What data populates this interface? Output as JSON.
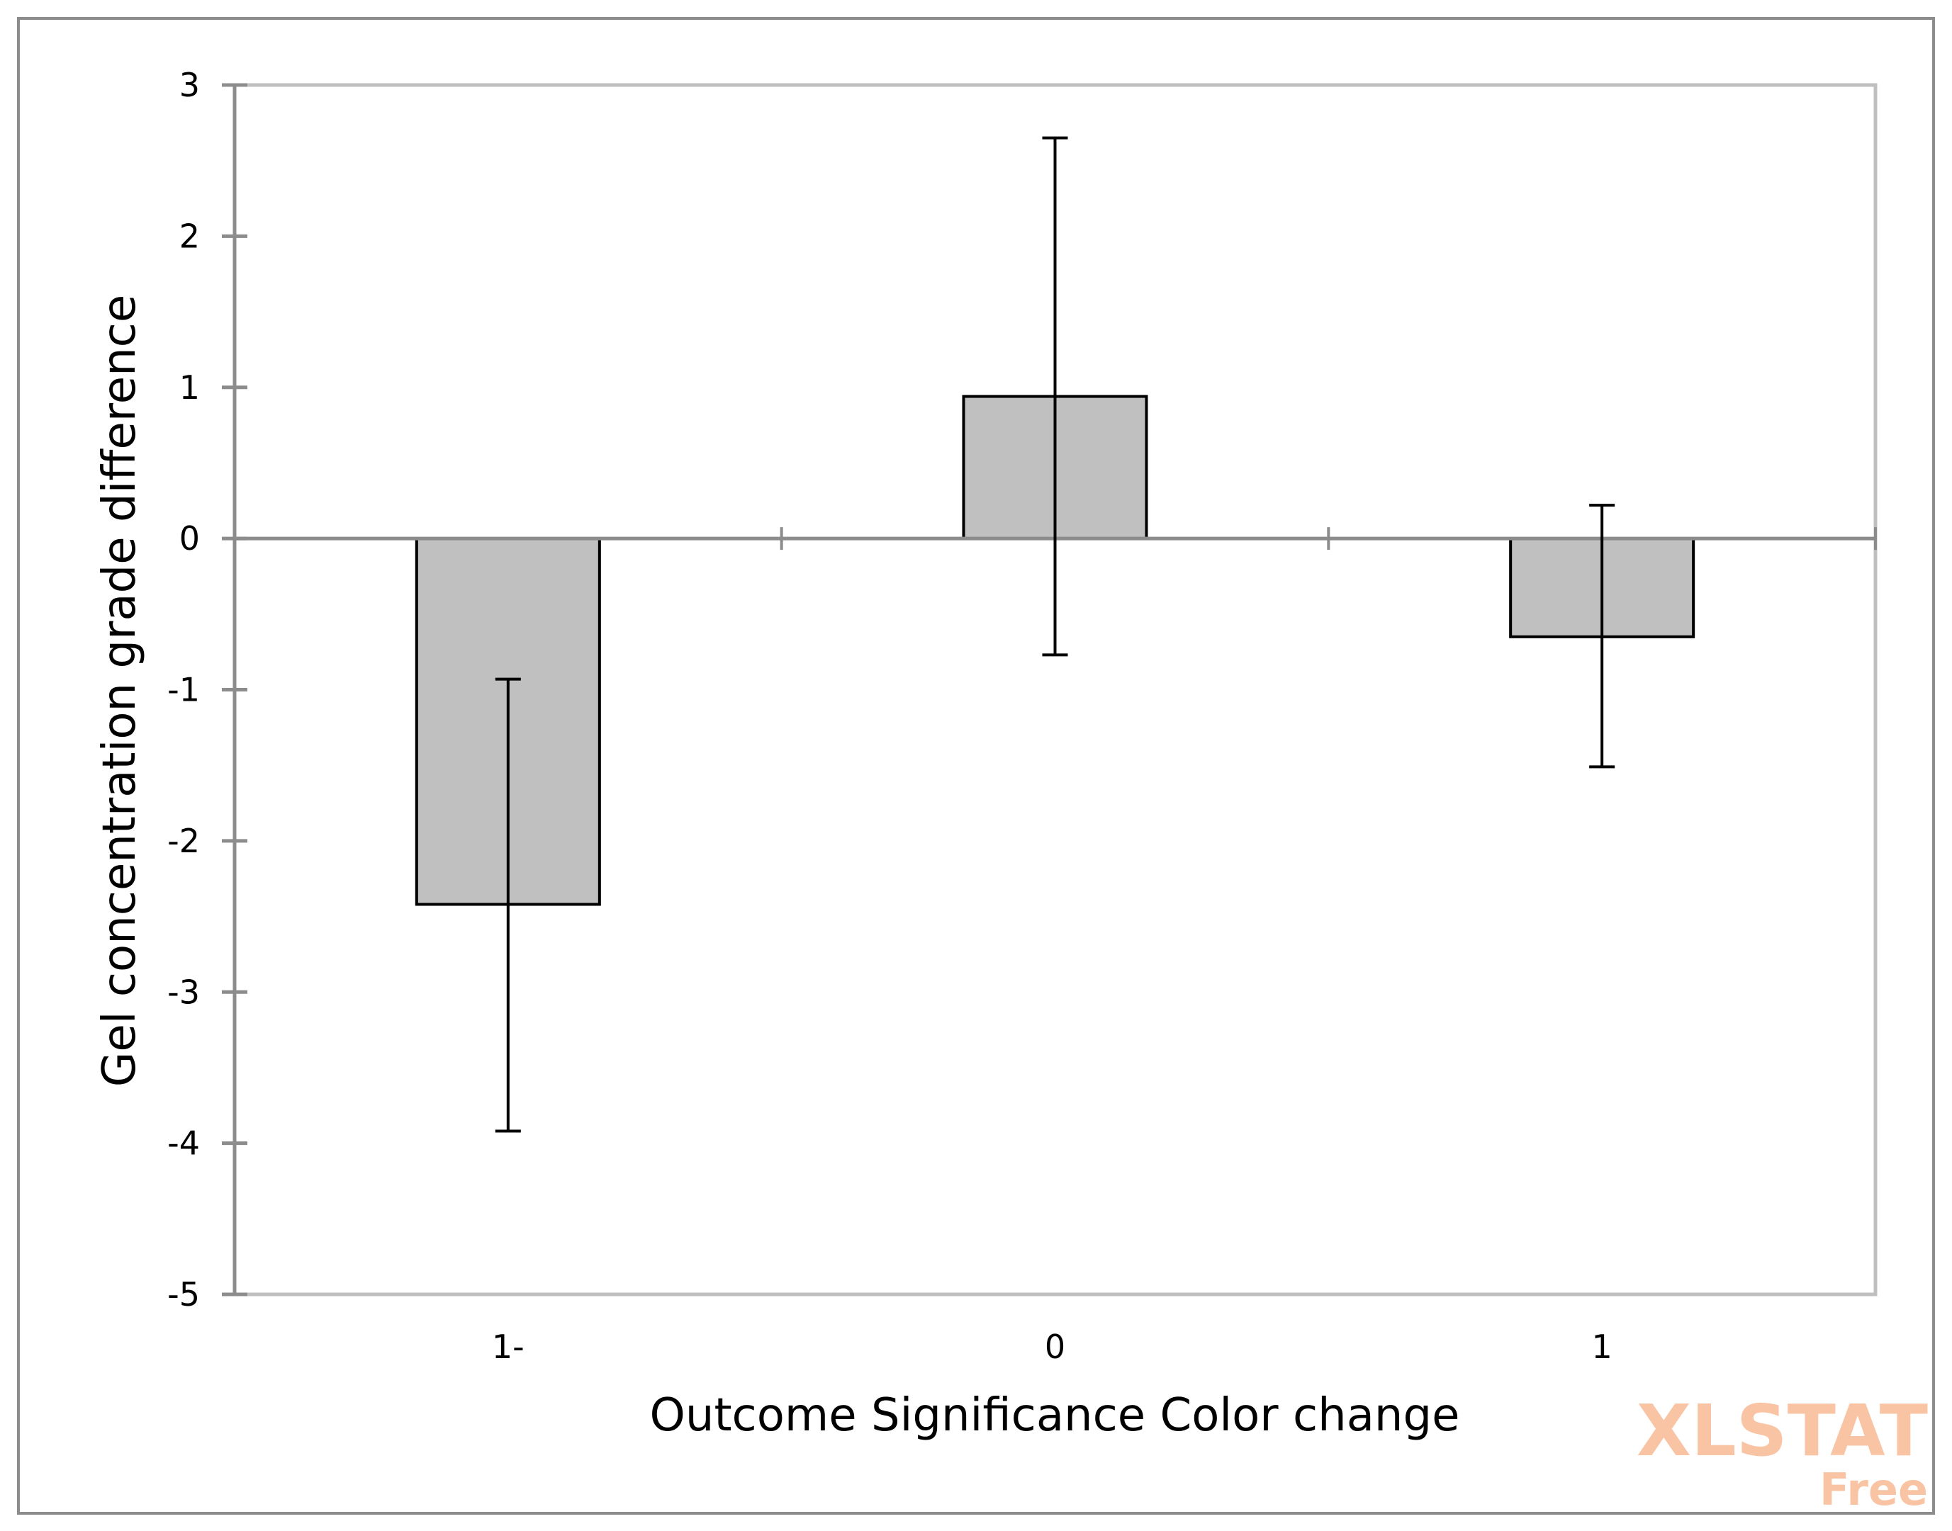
{
  "chart_data": {
    "type": "bar",
    "categories": [
      "1-",
      "0",
      "1"
    ],
    "values": [
      -2.42,
      0.94,
      -0.65
    ],
    "error_low": [
      -3.92,
      -0.77,
      -1.51
    ],
    "error_high": [
      -0.93,
      2.65,
      0.22
    ],
    "xlabel": "Outcome Significance  Color change",
    "ylabel": "Gel concentration grade difference",
    "ylim": [
      -5,
      3
    ],
    "yticks": [
      "3",
      "2",
      "1",
      "0",
      "-1",
      "-2",
      "-3",
      "-4",
      "-5"
    ],
    "grid": false,
    "colors": {
      "bar_fill": "#c0c0c0",
      "bar_stroke": "#000000",
      "axis": "#8c8c8c",
      "frame": "#bfbfbf",
      "watermark": "#f9c4a3"
    }
  },
  "watermark": {
    "main": "XLSTAT",
    "sub": "Free"
  }
}
